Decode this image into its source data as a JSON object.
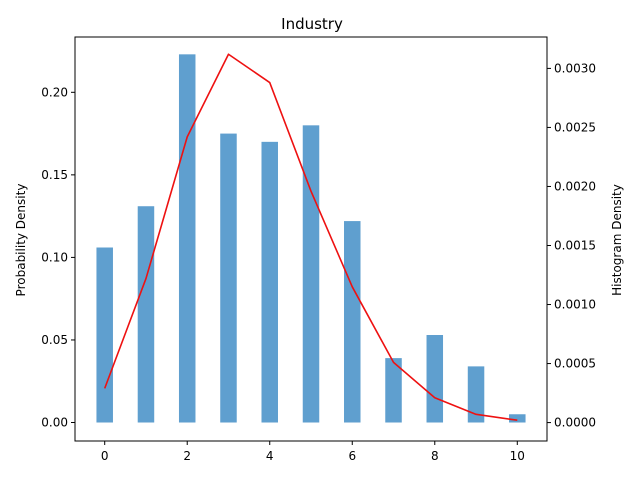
{
  "chart_data": {
    "type": "bar",
    "title": "Industry",
    "xlabel": "",
    "ylabel": "Probability Density",
    "y2label": "Histogram Density",
    "x": [
      0,
      1,
      2,
      3,
      4,
      5,
      6,
      7,
      8,
      9,
      10
    ],
    "xticks": [
      0,
      2,
      4,
      6,
      8,
      10
    ],
    "xlim": [
      -0.72,
      10.72
    ],
    "ylim": [
      -0.0112,
      0.2335
    ],
    "y2lim": [
      -0.000156,
      0.003266
    ],
    "yticks": [
      0.0,
      0.05,
      0.1,
      0.15,
      0.2
    ],
    "y2ticks": [
      0.0,
      0.0005,
      0.001,
      0.0015,
      0.002,
      0.0025,
      0.003
    ],
    "series": [
      {
        "kind": "bar",
        "axis": "left",
        "color": "#5f9fcf",
        "values": [
          0.106,
          0.131,
          0.223,
          0.175,
          0.17,
          0.18,
          0.122,
          0.039,
          0.053,
          0.034,
          0.005
        ]
      },
      {
        "kind": "line",
        "axis": "right",
        "color": "#ee1111",
        "values": [
          0.00029,
          0.00122,
          0.00242,
          0.00312,
          0.00288,
          0.00196,
          0.00115,
          0.00051,
          0.00021,
          7e-05,
          2e-05
        ]
      }
    ],
    "grid": false,
    "legend": "none"
  }
}
